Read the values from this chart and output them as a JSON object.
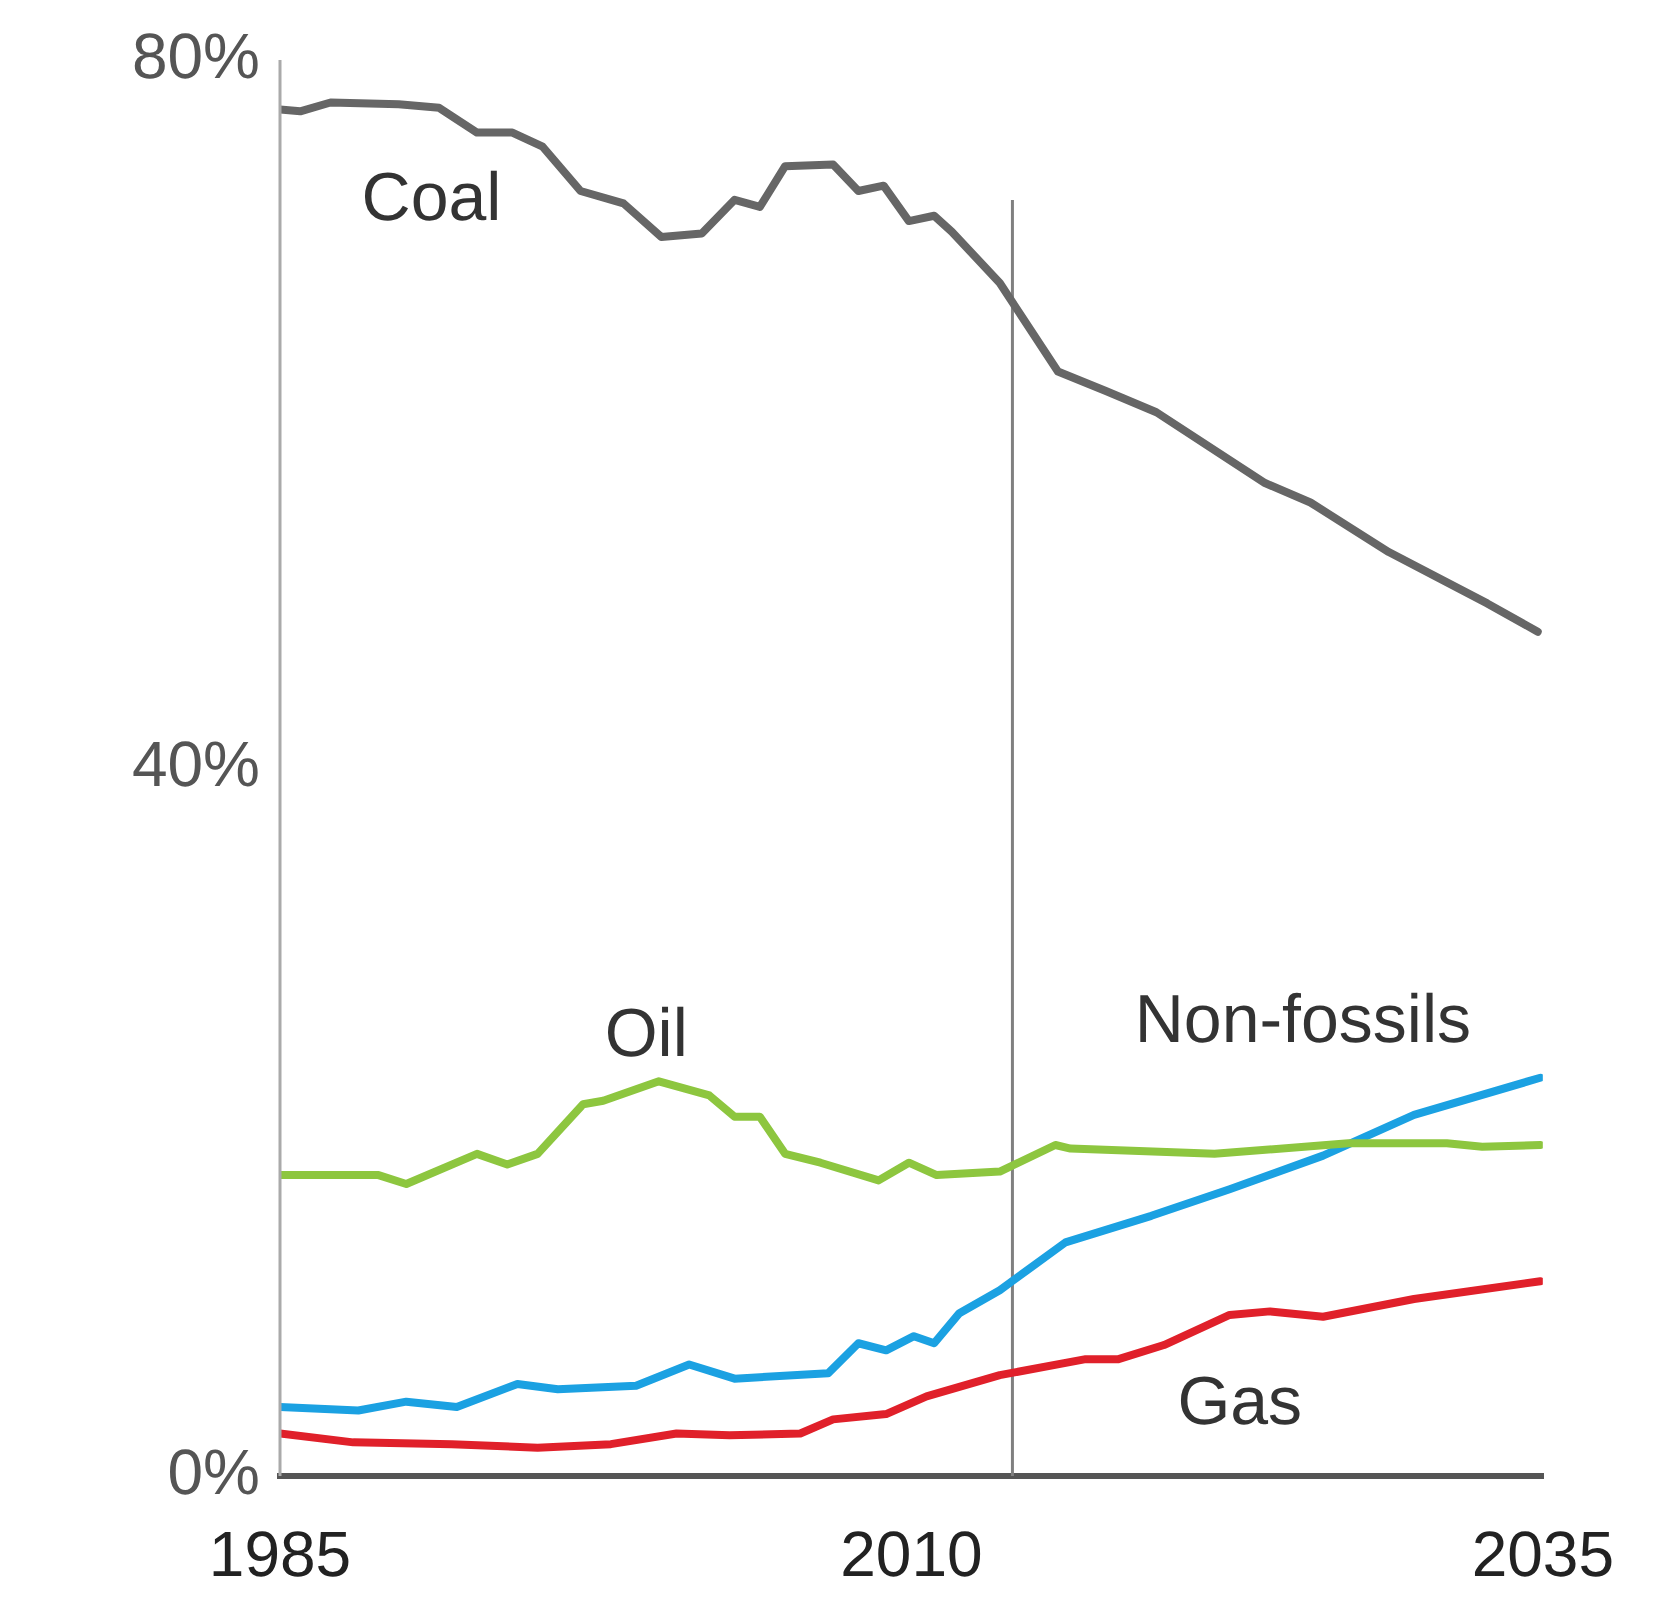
{
  "chart_data": {
    "type": "line",
    "xlim": [
      1985,
      2035
    ],
    "xticks": [
      1985,
      2010,
      2035
    ],
    "ylim": [
      0,
      80
    ],
    "yticks": [
      {
        "value": 0,
        "label": "0%"
      },
      {
        "value": 40,
        "label": "40%"
      },
      {
        "value": 80,
        "label": "80%"
      }
    ],
    "grid": false,
    "legend": false,
    "marker": "none",
    "line_style": "solid",
    "ref_lines": [
      {
        "axis": "x",
        "value": 2014,
        "color": "#808080"
      }
    ],
    "series": [
      {
        "name": "Coal",
        "color": "#666666",
        "x": [
          1985,
          1985.8,
          1987,
          1989.7,
          1991.3,
          1992.8,
          1994.2,
          1995.4,
          1996.9,
          1998.6,
          2000.1,
          2001.7,
          2003,
          2004,
          2005,
          2006.9,
          2007.9,
          2008.9,
          2009.9,
          2010.9,
          2011.6,
          2013.5,
          2015.8,
          2017.7,
          2019.7,
          2024,
          2025.8,
          2028.9,
          2032.8,
          2034.8
        ],
        "values": [
          77.2,
          77.1,
          77.6,
          77.5,
          77.3,
          75.9,
          75.9,
          75.1,
          72.6,
          71.9,
          70.0,
          70.2,
          72.1,
          71.7,
          74.0,
          74.1,
          72.6,
          72.9,
          70.9,
          71.2,
          70.3,
          67.4,
          62.4,
          61.3,
          60.1,
          56.1,
          55.0,
          52.2,
          49.3,
          47.7
        ]
      },
      {
        "name": "Oil",
        "color": "#8dc63f",
        "x": [
          1985,
          1988.9,
          1990,
          1992.8,
          1994,
          1995.2,
          1997,
          1997.8,
          2000,
          2002,
          2003,
          2004,
          2005,
          2006.4,
          2008.7,
          2009.9,
          2011,
          2013.5,
          2015.7,
          2016.3,
          2022,
          2027.3,
          2031.2,
          2032.6,
          2034.9
        ],
        "values": [
          17.0,
          17.0,
          16.5,
          18.2,
          17.6,
          18.2,
          21.0,
          21.2,
          22.3,
          21.5,
          20.3,
          20.3,
          18.2,
          17.7,
          16.7,
          17.7,
          17.0,
          17.2,
          18.7,
          18.5,
          18.2,
          18.8,
          18.8,
          18.6,
          18.7
        ]
      },
      {
        "name": "Non-fossils",
        "color": "#1ba1e2",
        "x": [
          1985,
          1988.1,
          1990,
          1992,
          1994.4,
          1996,
          1999.1,
          2001.2,
          2003,
          2006.7,
          2007.9,
          2009,
          2010.1,
          2010.9,
          2011.9,
          2013.5,
          2016.1,
          2019.5,
          2022.6,
          2026.3,
          2029.9,
          2034.9
        ],
        "values": [
          3.9,
          3.7,
          4.2,
          3.9,
          5.2,
          4.9,
          5.1,
          6.3,
          5.5,
          5.8,
          7.5,
          7.1,
          7.9,
          7.5,
          9.2,
          10.5,
          13.2,
          14.7,
          16.2,
          18.1,
          20.4,
          22.5
        ]
      },
      {
        "name": "Gas",
        "color": "#e0202a",
        "x": [
          1985,
          1987.9,
          1991.8,
          1995.2,
          1998.1,
          2000.7,
          2002.8,
          2005.6,
          2006.9,
          2009,
          2010.6,
          2013.5,
          2016.9,
          2018.2,
          2020,
          2022.6,
          2024.2,
          2026.3,
          2029.9,
          2034.9
        ],
        "values": [
          2.4,
          1.9,
          1.8,
          1.6,
          1.8,
          2.4,
          2.3,
          2.4,
          3.2,
          3.5,
          4.5,
          5.7,
          6.6,
          6.6,
          7.4,
          9.1,
          9.3,
          9.0,
          10.0,
          11.0
        ]
      }
    ]
  }
}
